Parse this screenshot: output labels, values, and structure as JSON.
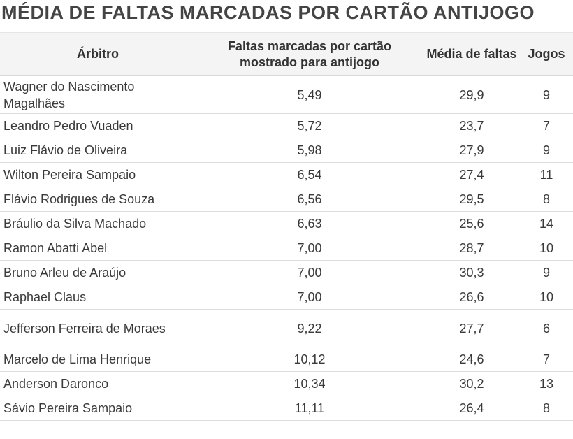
{
  "title": "MÉDIA DE FALTAS MARCADAS POR CARTÃO ANTIJOGO",
  "chart_data": {
    "type": "table",
    "title": "MÉDIA DE FALTAS MARCADAS POR CARTÃO ANTIJOGO",
    "columns": [
      "Árbitro",
      "Faltas marcadas por cartão mostrado para antijogo",
      "Média de faltas",
      "Jogos"
    ],
    "rows": [
      {
        "arbitro": "Wagner do Nascimento Magalhães",
        "faltas_por_cartao": "5,49",
        "media_faltas": "29,9",
        "jogos": "9"
      },
      {
        "arbitro": "Leandro Pedro Vuaden",
        "faltas_por_cartao": "5,72",
        "media_faltas": "23,7",
        "jogos": "7"
      },
      {
        "arbitro": "Luiz Flávio de Oliveira",
        "faltas_por_cartao": "5,98",
        "media_faltas": "27,9",
        "jogos": "9"
      },
      {
        "arbitro": "Wilton Pereira Sampaio",
        "faltas_por_cartao": "6,54",
        "media_faltas": "27,4",
        "jogos": "11"
      },
      {
        "arbitro": "Flávio Rodrigues de Souza",
        "faltas_por_cartao": "6,56",
        "media_faltas": "29,5",
        "jogos": "8"
      },
      {
        "arbitro": "Bráulio da Silva Machado",
        "faltas_por_cartao": "6,63",
        "media_faltas": "25,6",
        "jogos": "14"
      },
      {
        "arbitro": "Ramon Abatti Abel",
        "faltas_por_cartao": "7,00",
        "media_faltas": "28,7",
        "jogos": "10"
      },
      {
        "arbitro": "Bruno Arleu de Araújo",
        "faltas_por_cartao": "7,00",
        "media_faltas": "30,3",
        "jogos": "9"
      },
      {
        "arbitro": "Raphael Claus",
        "faltas_por_cartao": "7,00",
        "media_faltas": "26,6",
        "jogos": "10"
      },
      {
        "arbitro": "Jefferson Ferreira de Moraes",
        "faltas_por_cartao": "9,22",
        "media_faltas": "27,7",
        "jogos": "6"
      },
      {
        "arbitro": "Marcelo de Lima Henrique",
        "faltas_por_cartao": "10,12",
        "media_faltas": "24,6",
        "jogos": "7"
      },
      {
        "arbitro": "Anderson Daronco",
        "faltas_por_cartao": "10,34",
        "media_faltas": "30,2",
        "jogos": "13"
      },
      {
        "arbitro": "Sávio Pereira Sampaio",
        "faltas_por_cartao": "11,11",
        "media_faltas": "26,4",
        "jogos": "8"
      }
    ]
  }
}
